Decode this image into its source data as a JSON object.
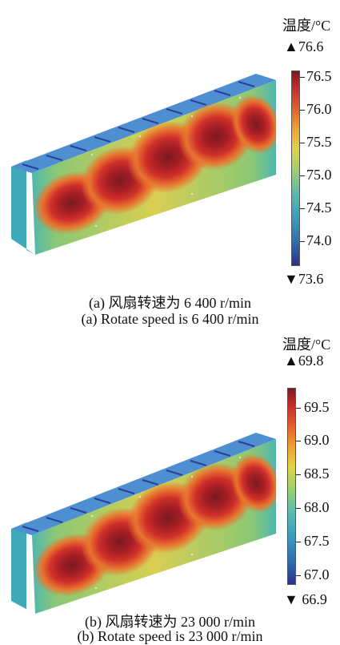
{
  "colormap": [
    "#2c2f8c",
    "#2d6fb0",
    "#3a9fc0",
    "#5ebfa8",
    "#a6d06a",
    "#e2d24a",
    "#f0a236",
    "#e05a2a",
    "#c22a2a",
    "#7a1a22"
  ],
  "panels": [
    {
      "unit_label": "温度/°C",
      "max_label": "▲76.6",
      "min_label": "▼73.6",
      "ticks": [
        "76.5",
        "76.0",
        "75.5",
        "75.0",
        "74.5",
        "74.0"
      ],
      "tick_values": [
        76.5,
        76.0,
        75.5,
        75.0,
        74.5,
        74.0
      ],
      "range": [
        73.6,
        76.6
      ],
      "caption_cn": "(a) 风扇转速为 6 400 r/min",
      "caption_en": "(a) Rotate speed is 6 400 r/min"
    },
    {
      "unit_label": "温度/°C",
      "max_label": "▲69.8",
      "min_label": "▼ 66.9",
      "ticks": [
        "69.5",
        "69.0",
        "68.5",
        "68.0",
        "67.5",
        "67.0"
      ],
      "tick_values": [
        69.5,
        69.0,
        68.5,
        68.0,
        67.5,
        67.0
      ],
      "range": [
        66.9,
        69.8
      ],
      "caption_cn": "(b) 风扇转速为 23 000 r/min",
      "caption_en": "(b) Rotate speed is 23 000 r/min"
    }
  ]
}
